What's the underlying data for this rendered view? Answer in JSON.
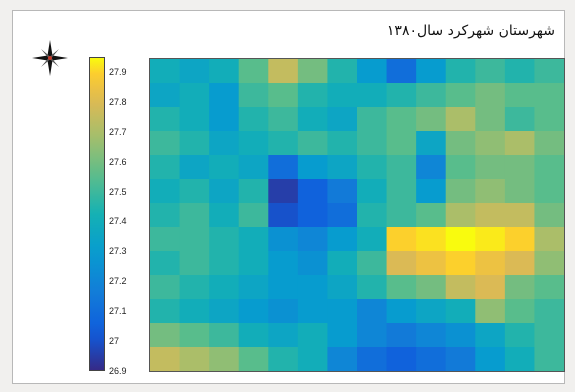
{
  "title": "شهرستان شهرکرد سال۱۳۸۰",
  "compass": {
    "icon": "compass-rose-icon"
  },
  "chart_data": {
    "type": "heatmap",
    "title": "شهرستان شهرکرد سال۱۳۸۰",
    "colormap": "parula",
    "colorbar": {
      "min": 26.9,
      "max": 27.95,
      "ticks": [
        "27.9",
        "27.8",
        "27.7",
        "27.6",
        "27.5",
        "27.4",
        "27.3",
        "27.2",
        "27.1",
        "27",
        "26.9"
      ]
    },
    "rows": 13,
    "cols": 14,
    "values": [
      [
        27.4,
        27.35,
        27.4,
        27.55,
        27.75,
        27.6,
        27.45,
        27.3,
        27.1,
        27.3,
        27.45,
        27.5,
        27.45,
        27.5
      ],
      [
        27.35,
        27.4,
        27.3,
        27.5,
        27.55,
        27.45,
        27.4,
        27.4,
        27.45,
        27.5,
        27.55,
        27.6,
        27.55,
        27.55
      ],
      [
        27.45,
        27.4,
        27.3,
        27.45,
        27.5,
        27.4,
        27.35,
        27.5,
        27.55,
        27.6,
        27.7,
        27.6,
        27.5,
        27.55
      ],
      [
        27.5,
        27.45,
        27.35,
        27.4,
        27.45,
        27.5,
        27.45,
        27.5,
        27.55,
        27.35,
        27.6,
        27.65,
        27.7,
        27.6
      ],
      [
        27.45,
        27.35,
        27.4,
        27.35,
        27.1,
        27.3,
        27.35,
        27.45,
        27.5,
        27.2,
        27.55,
        27.6,
        27.6,
        27.55
      ],
      [
        27.4,
        27.45,
        27.35,
        27.45,
        26.95,
        27.05,
        27.15,
        27.4,
        27.5,
        27.3,
        27.6,
        27.65,
        27.6,
        27.55
      ],
      [
        27.45,
        27.5,
        27.4,
        27.5,
        27.0,
        27.05,
        27.1,
        27.45,
        27.5,
        27.55,
        27.7,
        27.75,
        27.75,
        27.6
      ],
      [
        27.5,
        27.5,
        27.45,
        27.4,
        27.25,
        27.2,
        27.3,
        27.4,
        27.9,
        27.92,
        27.95,
        27.93,
        27.9,
        27.7
      ],
      [
        27.45,
        27.5,
        27.45,
        27.4,
        27.3,
        27.25,
        27.4,
        27.5,
        27.8,
        27.85,
        27.9,
        27.85,
        27.8,
        27.65
      ],
      [
        27.5,
        27.45,
        27.4,
        27.35,
        27.3,
        27.3,
        27.35,
        27.45,
        27.55,
        27.6,
        27.75,
        27.8,
        27.6,
        27.55
      ],
      [
        27.45,
        27.4,
        27.35,
        27.3,
        27.25,
        27.3,
        27.3,
        27.2,
        27.3,
        27.35,
        27.4,
        27.65,
        27.55,
        27.5
      ],
      [
        27.6,
        27.55,
        27.5,
        27.4,
        27.35,
        27.4,
        27.3,
        27.2,
        27.15,
        27.2,
        27.25,
        27.35,
        27.45,
        27.5
      ],
      [
        27.75,
        27.7,
        27.65,
        27.55,
        27.45,
        27.4,
        27.2,
        27.1,
        27.05,
        27.1,
        27.15,
        27.3,
        27.4,
        27.5
      ]
    ]
  }
}
